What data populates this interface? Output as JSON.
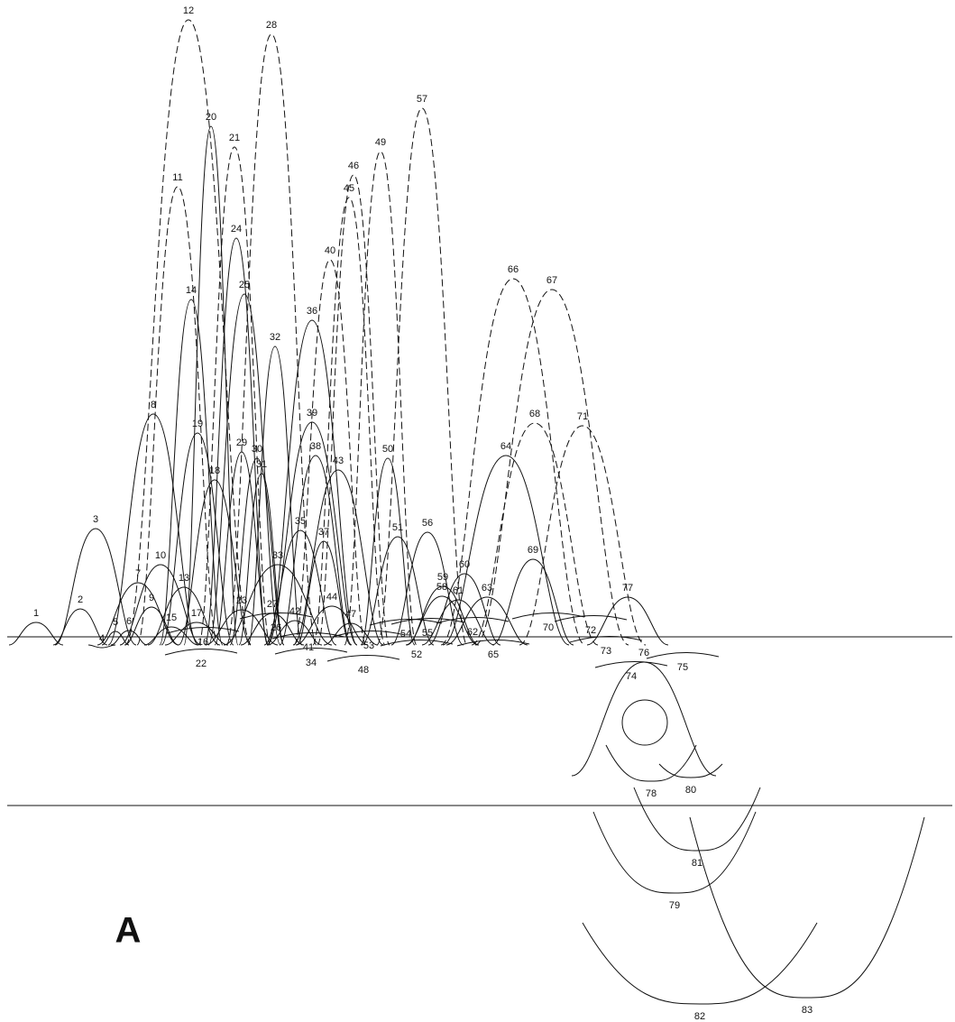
{
  "panel_label": "A",
  "labels": [
    "1",
    "2",
    "3",
    "4",
    "5",
    "6",
    "7",
    "8",
    "9",
    "10",
    "11",
    "12",
    "13",
    "14",
    "15",
    "16",
    "17",
    "18",
    "19",
    "20",
    "21",
    "22",
    "23",
    "24",
    "25",
    "26",
    "27",
    "28",
    "29",
    "30",
    "31",
    "32",
    "33",
    "34",
    "35",
    "36",
    "37",
    "38",
    "39",
    "40",
    "41",
    "42",
    "43",
    "44",
    "45",
    "46",
    "47",
    "48",
    "49",
    "50",
    "51",
    "52",
    "53",
    "54",
    "55",
    "56",
    "57",
    "58",
    "59",
    "60",
    "61",
    "62",
    "63",
    "64",
    "65",
    "66",
    "67",
    "68",
    "69",
    "70",
    "71",
    "72",
    "73",
    "74",
    "75",
    "76",
    "77",
    "78",
    "79",
    "80",
    "81",
    "82",
    "83"
  ]
}
